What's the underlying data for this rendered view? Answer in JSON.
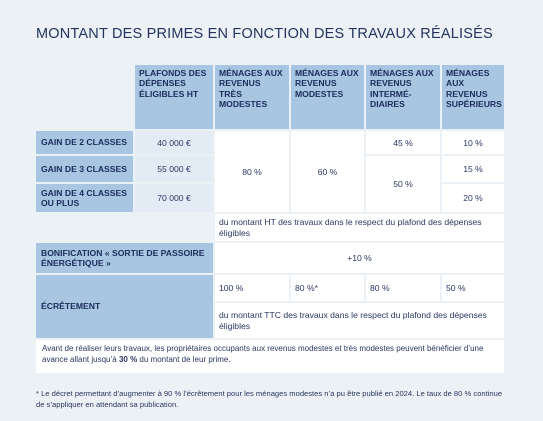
{
  "title": "MONTANT DES PRIMES EN FONCTION DES TRAVAUX RÉALISÉS",
  "headers": {
    "plafonds": "PLAFONDS DES DÉPENSES ÉLIGIBLES HT",
    "tres_modestes": "MÉNAGES AUX REVENUS TRÈS MODESTES",
    "modestes": "MÉNAGES AUX REVENUS MODESTES",
    "intermediaires": "MÉNAGES AUX REVENUS INTERMÉ- DIAIRES",
    "superieurs": "MÉNAGES AUX REVENUS SUPÉRIEURS"
  },
  "rows": {
    "gain2": {
      "label": "GAIN DE 2 CLASSES",
      "plafond": "40 000 €"
    },
    "gain3": {
      "label": "GAIN DE 3 CLASSES",
      "plafond": "55 000 €"
    },
    "gain4": {
      "label": "GAIN DE 4 CLASSES OU PLUS",
      "plafond": "70 000 €"
    }
  },
  "values": {
    "tres_modestes": "80 %",
    "modestes": "60 %",
    "intermediaires_gain2": "45 %",
    "intermediaires_gain34": "50 %",
    "superieurs_gain2": "10 %",
    "superieurs_gain3": "15 %",
    "superieurs_gain4": "20 %"
  },
  "note_ht": "du montant HT des travaux dans le respect du plafond des dépenses éligibles",
  "bonification": {
    "label": "BONIFICATION « SORTIE DE PASSOIRE ÉNERGÉTIQUE »",
    "value": "+10 %"
  },
  "ecretement": {
    "label": "ÉCRÊTEMENT",
    "tres_modestes": "100 %",
    "modestes": "80 %*",
    "intermediaires": "80 %",
    "superieurs": "50 %",
    "note_ttc": "du montant TTC des travaux dans le respect du plafond des dépenses éligibles"
  },
  "avant": {
    "text_before": "Avant de réaliser leurs travaux, les propriétaires occupants aux revenus modestes et très modestes peuvent bénéficier d’une avance allant jusqu’à ",
    "bold": "30 %",
    "text_after": " du montant de leur prime."
  },
  "footnote": "* Le décret permettant d’augmenter à 90 % l’écrêtement pour les ménages modestes n’a pu être publié en 2024. Le taux de 80 % continue de s’appliquer en attendant sa publication."
}
